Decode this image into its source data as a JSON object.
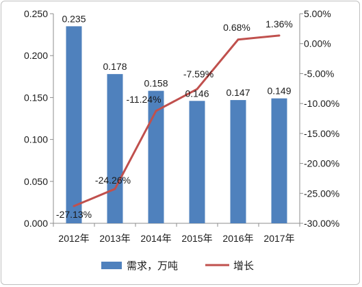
{
  "chart_data": {
    "type": "bar+line",
    "categories": [
      "2012年",
      "2013年",
      "2014年",
      "2015年",
      "2016年",
      "2017年"
    ],
    "series": [
      {
        "name": "需求，万吨",
        "type": "bar",
        "axis": "left",
        "values": [
          0.235,
          0.178,
          0.158,
          0.146,
          0.147,
          0.149
        ],
        "labels": [
          "0.235",
          "0.178",
          "0.158",
          "0.146",
          "0.147",
          "0.149"
        ],
        "color": "#4f81bd"
      },
      {
        "name": "增长",
        "type": "line",
        "axis": "right",
        "values": [
          -27.13,
          -24.26,
          -11.24,
          -7.59,
          0.68,
          1.36
        ],
        "labels": [
          "-27.13%",
          "-24.26%",
          "-11.24%",
          "-7.59%",
          "0.68%",
          "1.36%"
        ],
        "color": "#c0504d"
      }
    ],
    "y_left": {
      "min": 0,
      "max": 0.25,
      "ticks": [
        "0.000",
        "0.050",
        "0.100",
        "0.150",
        "0.200",
        "0.250"
      ]
    },
    "y_right": {
      "min": -30,
      "max": 5,
      "ticks": [
        "-30.00%",
        "-25.00%",
        "-20.00%",
        "-15.00%",
        "-10.00%",
        "-5.00%",
        "0.00%",
        "5.00%"
      ]
    },
    "grid": false,
    "legend": "bottom"
  }
}
